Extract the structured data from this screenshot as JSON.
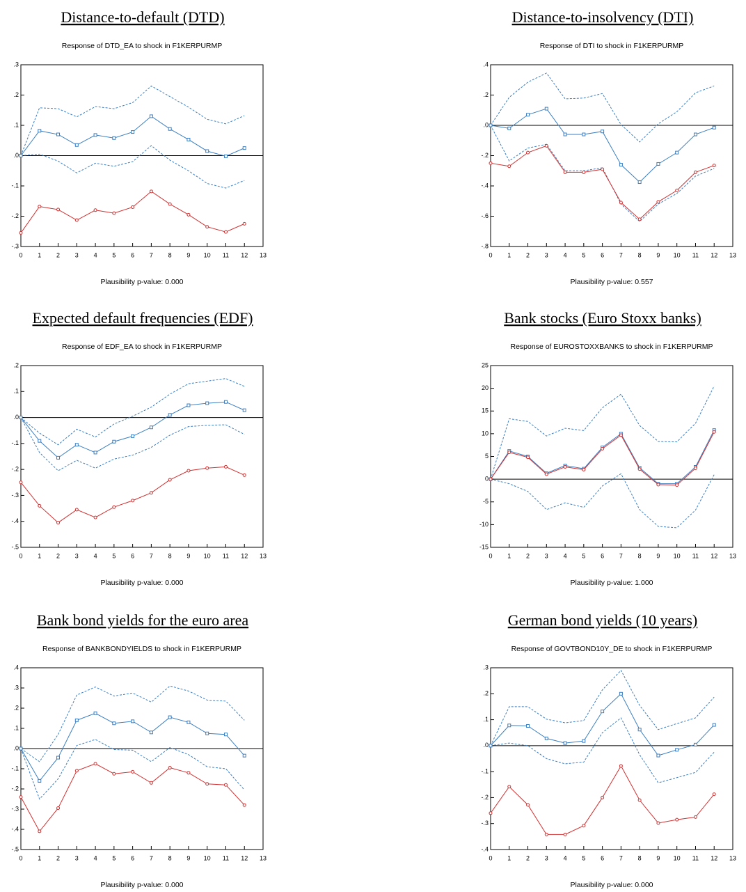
{
  "chart_data": [
    {
      "type": "line",
      "title": "Distance-to-default (DTD)",
      "subtitle": "Response of DTD_EA to shock in F1KERPURMP",
      "annotation": "Plausibility p-value: 0.000",
      "x": [
        0,
        1,
        2,
        3,
        4,
        5,
        6,
        7,
        8,
        9,
        10,
        11,
        12
      ],
      "xlim": [
        0,
        13
      ],
      "xticks": [
        0,
        1,
        2,
        3,
        4,
        5,
        6,
        7,
        8,
        9,
        10,
        11,
        12,
        13
      ],
      "ylim": [
        -0.3,
        0.3
      ],
      "yticks": [
        {
          "value": -0.3,
          "label": "-.3"
        },
        {
          "value": -0.2,
          "label": "-.2"
        },
        {
          "value": -0.1,
          "label": "-.1"
        },
        {
          "value": 0,
          "label": ".0"
        },
        {
          "value": 0.1,
          "label": ".1"
        },
        {
          "value": 0.2,
          "label": ".2"
        },
        {
          "value": 0.3,
          "label": ".3"
        }
      ],
      "series": [
        {
          "color": "#3a7ec1",
          "dashed": true,
          "values": [
            0,
            0.158,
            0.155,
            0.128,
            0.162,
            0.155,
            0.175,
            0.23,
            0.195,
            0.16,
            0.12,
            0.105,
            0.132
          ]
        },
        {
          "color": "#3a7ec1",
          "dashed": true,
          "values": [
            0,
            0.005,
            -0.018,
            -0.057,
            -0.025,
            -0.035,
            -0.02,
            0.033,
            -0.015,
            -0.05,
            -0.092,
            -0.107,
            -0.082
          ]
        },
        {
          "color": "#3a7ec1",
          "marker": "square",
          "values": [
            0,
            0.082,
            0.07,
            0.035,
            0.068,
            0.058,
            0.078,
            0.13,
            0.088,
            0.053,
            0.015,
            -0.002,
            0.025
          ]
        },
        {
          "color": "#d03030",
          "marker": "circle",
          "values": [
            -0.255,
            -0.168,
            -0.178,
            -0.213,
            -0.18,
            -0.19,
            -0.17,
            -0.118,
            -0.16,
            -0.195,
            -0.235,
            -0.252,
            -0.225
          ]
        }
      ]
    },
    {
      "type": "line",
      "title": "Distance-to-insolvency (DTI)",
      "subtitle": "Response of DTI to shock in F1KERPURMP",
      "annotation": "Plausibility p-value: 0.557",
      "x": [
        0,
        1,
        2,
        3,
        4,
        5,
        6,
        7,
        8,
        9,
        10,
        11,
        12
      ],
      "xlim": [
        0,
        13
      ],
      "xticks": [
        0,
        1,
        2,
        3,
        4,
        5,
        6,
        7,
        8,
        9,
        10,
        11,
        12,
        13
      ],
      "ylim": [
        -0.8,
        0.4
      ],
      "yticks": [
        {
          "value": -0.8,
          "label": "-.8"
        },
        {
          "value": -0.6,
          "label": "-.6"
        },
        {
          "value": -0.4,
          "label": "-.4"
        },
        {
          "value": -0.2,
          "label": "-.2"
        },
        {
          "value": 0,
          "label": ".0"
        },
        {
          "value": 0.2,
          "label": ".2"
        },
        {
          "value": 0.4,
          "label": ".4"
        }
      ],
      "series": [
        {
          "color": "#3a7ec1",
          "dashed": true,
          "values": [
            0,
            0.185,
            0.285,
            0.345,
            0.175,
            0.18,
            0.21,
            0.005,
            -0.11,
            0.01,
            0.09,
            0.215,
            0.26
          ]
        },
        {
          "color": "#3a7ec1",
          "dashed": true,
          "values": [
            0,
            -0.235,
            -0.15,
            -0.125,
            -0.3,
            -0.3,
            -0.28,
            -0.52,
            -0.635,
            -0.52,
            -0.45,
            -0.335,
            -0.285
          ]
        },
        {
          "color": "#3a7ec1",
          "marker": "square",
          "values": [
            0,
            -0.02,
            0.07,
            0.11,
            -0.06,
            -0.06,
            -0.04,
            -0.26,
            -0.375,
            -0.255,
            -0.18,
            -0.06,
            -0.015
          ]
        },
        {
          "color": "#d03030",
          "marker": "circle",
          "values": [
            -0.25,
            -0.27,
            -0.18,
            -0.135,
            -0.31,
            -0.31,
            -0.29,
            -0.51,
            -0.62,
            -0.505,
            -0.43,
            -0.31,
            -0.265
          ]
        }
      ]
    },
    {
      "type": "line",
      "title": "Expected default frequencies (EDF)",
      "subtitle": "Response of EDF_EA to shock in F1KERPURMP",
      "annotation": "Plausibility p-value: 0.000",
      "x": [
        0,
        1,
        2,
        3,
        4,
        5,
        6,
        7,
        8,
        9,
        10,
        11,
        12
      ],
      "xlim": [
        0,
        13
      ],
      "xticks": [
        0,
        1,
        2,
        3,
        4,
        5,
        6,
        7,
        8,
        9,
        10,
        11,
        12,
        13
      ],
      "ylim": [
        -0.5,
        0.2
      ],
      "yticks": [
        {
          "value": -0.5,
          "label": "-.5"
        },
        {
          "value": -0.4,
          "label": "-.4"
        },
        {
          "value": -0.3,
          "label": "-.3"
        },
        {
          "value": -0.2,
          "label": "-.2"
        },
        {
          "value": -0.1,
          "label": "-.1"
        },
        {
          "value": 0,
          "label": ".0"
        },
        {
          "value": 0.1,
          "label": ".1"
        },
        {
          "value": 0.2,
          "label": ".2"
        }
      ],
      "series": [
        {
          "color": "#3a7ec1",
          "dashed": true,
          "values": [
            0,
            -0.06,
            -0.105,
            -0.045,
            -0.075,
            -0.025,
            0.005,
            0.04,
            0.09,
            0.13,
            0.14,
            0.15,
            0.12
          ]
        },
        {
          "color": "#3a7ec1",
          "dashed": true,
          "values": [
            0,
            -0.135,
            -0.205,
            -0.165,
            -0.195,
            -0.16,
            -0.145,
            -0.115,
            -0.068,
            -0.035,
            -0.03,
            -0.028,
            -0.065
          ]
        },
        {
          "color": "#3a7ec1",
          "marker": "square",
          "values": [
            0,
            -0.09,
            -0.155,
            -0.105,
            -0.135,
            -0.093,
            -0.072,
            -0.038,
            0.01,
            0.047,
            0.055,
            0.06,
            0.028
          ]
        },
        {
          "color": "#d03030",
          "marker": "circle",
          "values": [
            -0.25,
            -0.34,
            -0.405,
            -0.355,
            -0.385,
            -0.345,
            -0.32,
            -0.29,
            -0.24,
            -0.205,
            -0.195,
            -0.19,
            -0.222
          ]
        }
      ]
    },
    {
      "type": "line",
      "title": "Bank stocks (Euro Stoxx banks)",
      "subtitle": "Response of EUROSTOXXBANKS to shock in F1KERPURMP",
      "annotation": "Plausibility p-value: 1.000",
      "x": [
        0,
        1,
        2,
        3,
        4,
        5,
        6,
        7,
        8,
        9,
        10,
        11,
        12
      ],
      "xlim": [
        0,
        13
      ],
      "xticks": [
        0,
        1,
        2,
        3,
        4,
        5,
        6,
        7,
        8,
        9,
        10,
        11,
        12,
        13
      ],
      "ylim": [
        -15,
        25
      ],
      "yticks": [
        -15,
        -10,
        -5,
        0,
        5,
        10,
        15,
        20,
        25
      ],
      "series": [
        {
          "color": "#3a7ec1",
          "dashed": true,
          "values": [
            0,
            13.3,
            12.7,
            9.5,
            11.2,
            10.7,
            15.7,
            18.7,
            11.8,
            8.3,
            8.2,
            12.3,
            20.5
          ]
        },
        {
          "color": "#3a7ec1",
          "dashed": true,
          "values": [
            0,
            -1,
            -2.7,
            -6.7,
            -5.2,
            -6.2,
            -1.5,
            1.2,
            -6.7,
            -10.4,
            -10.7,
            -6.8,
            1.0
          ]
        },
        {
          "color": "#3a7ec1",
          "marker": "square",
          "values": [
            0,
            6.2,
            5.0,
            1.3,
            3.0,
            2.3,
            7.0,
            10.0,
            2.5,
            -1.0,
            -1.0,
            2.7,
            10.8
          ]
        },
        {
          "color": "#d03030",
          "marker": "circle",
          "values": [
            0,
            5.9,
            4.8,
            1.1,
            2.7,
            2.1,
            6.7,
            9.7,
            2.2,
            -1.2,
            -1.3,
            2.4,
            10.4
          ]
        }
      ]
    },
    {
      "type": "line",
      "title": "Bank bond yields for the euro area",
      "subtitle": "Response of BANKBONDYIELDS to shock in F1KERPURMP",
      "annotation": "Plausibility p-value: 0.000",
      "x": [
        0,
        1,
        2,
        3,
        4,
        5,
        6,
        7,
        8,
        9,
        10,
        11,
        12
      ],
      "xlim": [
        0,
        13
      ],
      "xticks": [
        0,
        1,
        2,
        3,
        4,
        5,
        6,
        7,
        8,
        9,
        10,
        11,
        12,
        13
      ],
      "ylim": [
        -0.5,
        0.4
      ],
      "yticks": [
        {
          "value": -0.5,
          "label": "-.5"
        },
        {
          "value": -0.4,
          "label": "-.4"
        },
        {
          "value": -0.3,
          "label": "-.3"
        },
        {
          "value": -0.2,
          "label": "-.2"
        },
        {
          "value": -0.1,
          "label": "-.1"
        },
        {
          "value": 0,
          "label": ".0"
        },
        {
          "value": 0.1,
          "label": ".1"
        },
        {
          "value": 0.2,
          "label": ".2"
        },
        {
          "value": 0.3,
          "label": ".3"
        },
        {
          "value": 0.4,
          "label": ".4"
        }
      ],
      "series": [
        {
          "color": "#3a7ec1",
          "dashed": true,
          "values": [
            0,
            -0.065,
            0.07,
            0.265,
            0.305,
            0.26,
            0.275,
            0.23,
            0.31,
            0.285,
            0.24,
            0.235,
            0.14
          ]
        },
        {
          "color": "#3a7ec1",
          "dashed": true,
          "values": [
            0,
            -0.25,
            -0.15,
            0.015,
            0.045,
            -0.005,
            -0.008,
            -0.065,
            0.005,
            -0.03,
            -0.09,
            -0.1,
            -0.205
          ]
        },
        {
          "color": "#3a7ec1",
          "marker": "square",
          "values": [
            0,
            -0.16,
            -0.045,
            0.14,
            0.175,
            0.125,
            0.135,
            0.08,
            0.155,
            0.13,
            0.075,
            0.07,
            -0.035
          ]
        },
        {
          "color": "#d03030",
          "marker": "circle",
          "values": [
            -0.24,
            -0.41,
            -0.295,
            -0.11,
            -0.075,
            -0.125,
            -0.115,
            -0.17,
            -0.095,
            -0.12,
            -0.175,
            -0.18,
            -0.28
          ]
        }
      ]
    },
    {
      "type": "line",
      "title": "German bond yields (10 years)",
      "subtitle": "Response of GOVTBOND10Y_DE to shock in F1KERPURMP",
      "annotation": "Plausibility p-value: 0.000",
      "x": [
        0,
        1,
        2,
        3,
        4,
        5,
        6,
        7,
        8,
        9,
        10,
        11,
        12
      ],
      "xlim": [
        0,
        13
      ],
      "xticks": [
        0,
        1,
        2,
        3,
        4,
        5,
        6,
        7,
        8,
        9,
        10,
        11,
        12,
        13
      ],
      "ylim": [
        -0.4,
        0.3
      ],
      "yticks": [
        {
          "value": -0.4,
          "label": "-.4"
        },
        {
          "value": -0.3,
          "label": "-.3"
        },
        {
          "value": -0.2,
          "label": "-.2"
        },
        {
          "value": -0.1,
          "label": "-.1"
        },
        {
          "value": 0,
          "label": ".0"
        },
        {
          "value": 0.1,
          "label": ".1"
        },
        {
          "value": 0.2,
          "label": ".2"
        },
        {
          "value": 0.3,
          "label": ".3"
        }
      ],
      "series": [
        {
          "color": "#3a7ec1",
          "dashed": true,
          "values": [
            0,
            0.15,
            0.15,
            0.102,
            0.088,
            0.097,
            0.215,
            0.29,
            0.155,
            0.062,
            0.085,
            0.107,
            0.187
          ]
        },
        {
          "color": "#3a7ec1",
          "dashed": true,
          "values": [
            0,
            0.01,
            0.0,
            -0.05,
            -0.07,
            -0.063,
            0.05,
            0.107,
            -0.035,
            -0.143,
            -0.123,
            -0.103,
            -0.025
          ]
        },
        {
          "color": "#3a7ec1",
          "marker": "square",
          "values": [
            0,
            0.078,
            0.076,
            0.028,
            0.01,
            0.018,
            0.132,
            0.2,
            0.062,
            -0.038,
            -0.016,
            0.004,
            0.08
          ]
        },
        {
          "color": "#d03030",
          "marker": "circle",
          "values": [
            -0.26,
            -0.158,
            -0.228,
            -0.342,
            -0.342,
            -0.308,
            -0.2,
            -0.078,
            -0.21,
            -0.298,
            -0.285,
            -0.275,
            -0.187
          ]
        }
      ]
    }
  ]
}
